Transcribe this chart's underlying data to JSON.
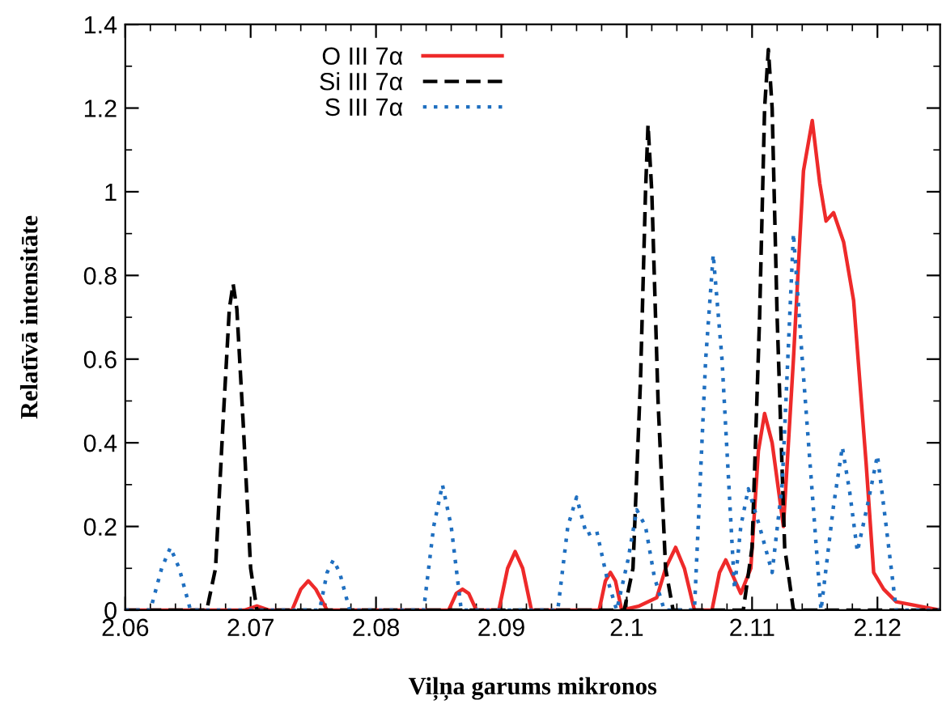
{
  "chart_data": {
    "type": "line",
    "xlabel": "Viļņa garums mikronos",
    "ylabel": "Relatīvā intensitāte",
    "xlim": [
      2.06,
      2.125
    ],
    "xticks": [
      2.06,
      2.07,
      2.08,
      2.09,
      2.1,
      2.11,
      2.12
    ],
    "ylim": [
      0,
      1.4
    ],
    "yticks": [
      0,
      0.2,
      0.4,
      0.6,
      0.8,
      1,
      1.2,
      1.4
    ],
    "grid": false,
    "legend": "top",
    "marker": "none",
    "series": [
      {
        "name": "O III 7α",
        "color": "#ee2a2a",
        "line_style": "solid",
        "x": [
          2.06,
          2.0695,
          2.0705,
          2.0715,
          2.0733,
          2.074,
          2.0746,
          2.0752,
          2.0761,
          2.0858,
          2.0864,
          2.0869,
          2.0874,
          2.088,
          2.0898,
          2.0905,
          2.0911,
          2.0917,
          2.0924,
          2.0978,
          2.0983,
          2.0987,
          2.0991,
          2.0996,
          2.101,
          2.1024,
          2.1031,
          2.1039,
          2.1046,
          2.1054,
          2.1068,
          2.1074,
          2.1079,
          2.1085,
          2.1091,
          2.1099,
          2.1105,
          2.111,
          2.1116,
          2.1125,
          2.1133,
          2.1141,
          2.1148,
          2.1154,
          2.1159,
          2.1165,
          2.1173,
          2.1181,
          2.1191,
          2.1197,
          2.1205,
          2.1215,
          2.125
        ],
        "values": [
          0,
          0,
          0.01,
          0,
          0,
          0.05,
          0.07,
          0.05,
          0,
          0,
          0.04,
          0.05,
          0.04,
          0,
          0,
          0.1,
          0.14,
          0.1,
          0,
          0,
          0.07,
          0.09,
          0.07,
          0,
          0.01,
          0.03,
          0.1,
          0.15,
          0.1,
          0,
          0,
          0.09,
          0.12,
          0.08,
          0.04,
          0.1,
          0.38,
          0.47,
          0.4,
          0.2,
          0.6,
          1.05,
          1.17,
          1.02,
          0.93,
          0.95,
          0.88,
          0.74,
          0.35,
          0.09,
          0.05,
          0.02,
          0
        ]
      },
      {
        "name": "Si III 7α",
        "color": "#000000",
        "line_style": "dashed",
        "x": [
          2.06,
          2.0665,
          2.0672,
          2.0678,
          2.0683,
          2.0686,
          2.0689,
          2.0694,
          2.07,
          2.0705,
          2.0998,
          2.1005,
          2.1011,
          2.1015,
          2.1017,
          2.102,
          2.1025,
          2.1031,
          2.1037,
          2.1093,
          2.11,
          2.1106,
          2.111,
          2.1113,
          2.1116,
          2.112,
          2.1126,
          2.1133,
          2.125
        ],
        "values": [
          0,
          0,
          0.1,
          0.45,
          0.72,
          0.78,
          0.72,
          0.45,
          0.1,
          0,
          0,
          0.1,
          0.55,
          1.0,
          1.16,
          1.0,
          0.5,
          0.1,
          0,
          0,
          0.15,
          0.7,
          1.2,
          1.34,
          1.2,
          0.7,
          0.15,
          0,
          0
        ]
      },
      {
        "name": "S III 7α",
        "color": "#1f6fc0",
        "line_style": "dotted",
        "x": [
          2.06,
          2.062,
          2.0629,
          2.0636,
          2.0643,
          2.0652,
          2.0755,
          2.0761,
          2.0766,
          2.0771,
          2.0779,
          2.0838,
          2.0846,
          2.0853,
          2.086,
          2.0868,
          2.0945,
          2.0953,
          2.096,
          2.0968,
          2.0976,
          2.0984,
          2.0992,
          2.1001,
          2.1008,
          2.1015,
          2.1022,
          2.103,
          2.1054,
          2.1063,
          2.1069,
          2.1076,
          2.1086,
          2.1091,
          2.1097,
          2.1106,
          2.1116,
          2.1124,
          2.1133,
          2.114,
          2.1155,
          2.1165,
          2.1172,
          2.1178,
          2.1184,
          2.1192,
          2.12,
          2.1207,
          2.1215,
          2.125
        ],
        "values": [
          0,
          0,
          0.1,
          0.15,
          0.1,
          0,
          0,
          0.09,
          0.12,
          0.09,
          0,
          0,
          0.2,
          0.3,
          0.2,
          0,
          0,
          0.2,
          0.27,
          0.18,
          0.19,
          0.08,
          0,
          0.12,
          0.24,
          0.2,
          0.08,
          0,
          0,
          0.6,
          0.85,
          0.6,
          0.05,
          0.2,
          0.29,
          0.2,
          0.09,
          0.3,
          0.9,
          0.6,
          0,
          0.25,
          0.39,
          0.28,
          0.14,
          0.25,
          0.37,
          0.2,
          0,
          0
        ]
      }
    ]
  }
}
